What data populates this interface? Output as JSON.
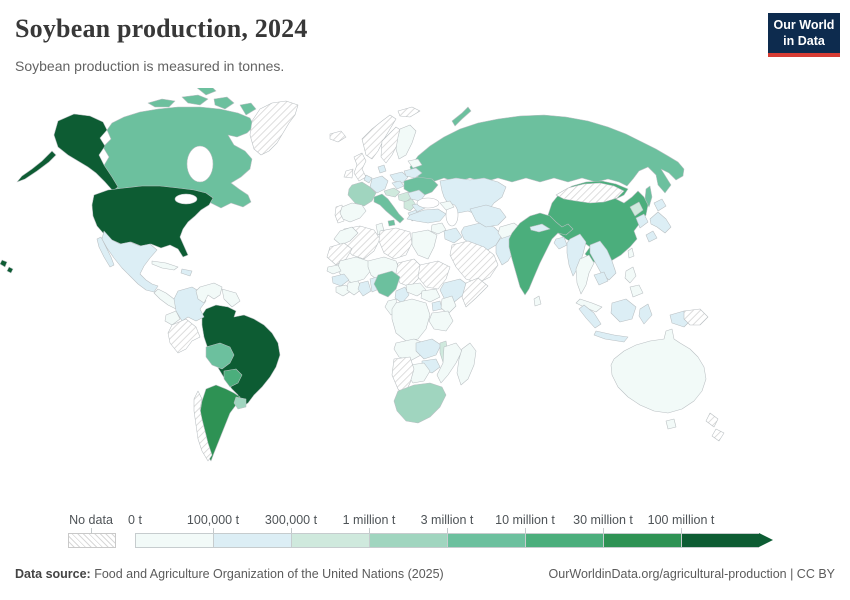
{
  "header": {
    "title": "Soybean production, 2024",
    "subtitle": "Soybean production is measured in tonnes.",
    "logo": {
      "line1": "Our World",
      "line2": "in Data",
      "bg_color": "#0d2b4e",
      "accent_color": "#d73c34"
    }
  },
  "chart_data": {
    "type": "choropleth_map",
    "metric": "Soybean production",
    "year": 2024,
    "unit": "tonnes",
    "projection": "world",
    "legend": {
      "no_data_label": "No data",
      "tick_labels": [
        "0 t",
        "100,000 t",
        "300,000 t",
        "1 million t",
        "3 million t",
        "10 million t",
        "30 million t",
        "100 million t"
      ],
      "bin_colors": [
        "#f2faf8",
        "#dceef5",
        "#cfe9dd",
        "#a0d5bf",
        "#6cc09e",
        "#4bae7c",
        "#2e9254",
        "#0d5c33"
      ],
      "no_data_pattern": "diagonal-hatch",
      "hatch_line_color": "#d2d2d2"
    },
    "bin_ranges": [
      "0-100,000 t",
      "100,000-300,000 t",
      "300,000-1 million t",
      "1-3 million t",
      "3-10 million t",
      "10-30 million t",
      "30-100 million t",
      "100+ million t"
    ],
    "country_bins": {
      "united-states": 7,
      "canada": 4,
      "greenland": "no_data",
      "mexico": 1,
      "central-america": 0,
      "cuba": 0,
      "hispaniola": 1,
      "colombia": 1,
      "venezuela": 0,
      "guyanas": 0,
      "ecuador": 0,
      "peru": "no_data",
      "brazil": 7,
      "bolivia": 4,
      "paraguay": 5,
      "uruguay": 3,
      "argentina": 6,
      "chile": "no_data",
      "iceland": "no_data",
      "svalbard": "no_data",
      "norway": "no_data",
      "sweden": "no_data",
      "finland": 0,
      "baltic-states": 0,
      "united-kingdom": "no_data",
      "ireland": "no_data",
      "denmark": 1,
      "germany": 1,
      "benelux": 1,
      "france": 3,
      "portugal": "no_data",
      "spain": 0,
      "italy": 4,
      "central-europe": 2,
      "poland": 1,
      "czechia": 1,
      "hungary-croatia": 2,
      "serbia-balkans": 2,
      "greece": 1,
      "bulgaria": 1,
      "romania": 1,
      "ukraine": 4,
      "belarus": 1,
      "russia": 4,
      "kazakhstan": 1,
      "turkey": 1,
      "caucasus": 0,
      "levant": 0,
      "iraq": 1,
      "iran": 1,
      "saudi-arabia": "no_data",
      "central-asia": 1,
      "afghanistan": 0,
      "pakistan": 1,
      "india": 5,
      "nepal": 1,
      "bangladesh": 1,
      "sri-lanka": 0,
      "myanmar": 1,
      "thailand": 0,
      "vietnam-laos": 1,
      "cambodia": 1,
      "malaysia": 0,
      "china": 5,
      "mongolia": "no_data",
      "north-korea": 2,
      "south-korea": 1,
      "japan": 1,
      "taiwan": 0,
      "philippines": 0,
      "indonesia": 1,
      "papua-new-guinea": "no_data",
      "australia": 0,
      "new-zealand": "no_data",
      "morocco": 0,
      "western-sahara-mauritania": "no_data",
      "algeria": "no_data",
      "tunisia": 0,
      "libya": "no_data",
      "egypt": 0,
      "mali": 0,
      "niger": 0,
      "chad": "no_data",
      "sudan": "no_data",
      "ethiopia": 1,
      "somalia": "no_data",
      "senegal": 0,
      "guinea": 1,
      "sierra-leone-liberia": 0,
      "ivory-coast": 0,
      "ghana": 1,
      "togo-benin": 1,
      "nigeria": 4,
      "cameroon": 1,
      "central-african-republic": 0,
      "south-sudan": 0,
      "uganda": 1,
      "kenya": 0,
      "dr-congo": 0,
      "congo-gabon": 0,
      "tanzania": 0,
      "angola": 0,
      "zambia": 1,
      "malawi": 2,
      "mozambique": 0,
      "zimbabwe": 1,
      "botswana": 0,
      "namibia": "no_data",
      "south-africa": 3,
      "madagascar": 0
    },
    "highlighted_values": {
      "united-states": "100+ million t",
      "brazil": "100+ million t",
      "argentina": "30-100 million t",
      "china": "10-30 million t",
      "india": "10-30 million t",
      "paraguay": "10-30 million t",
      "canada": "3-10 million t",
      "russia": "3-10 million t",
      "ukraine": "3-10 million t"
    }
  },
  "footer": {
    "source_label": "Data source:",
    "source_text": " Food and Agriculture Organization of the United Nations (2025)",
    "link_text": "OurWorldinData.org/agricultural-production | CC BY"
  }
}
